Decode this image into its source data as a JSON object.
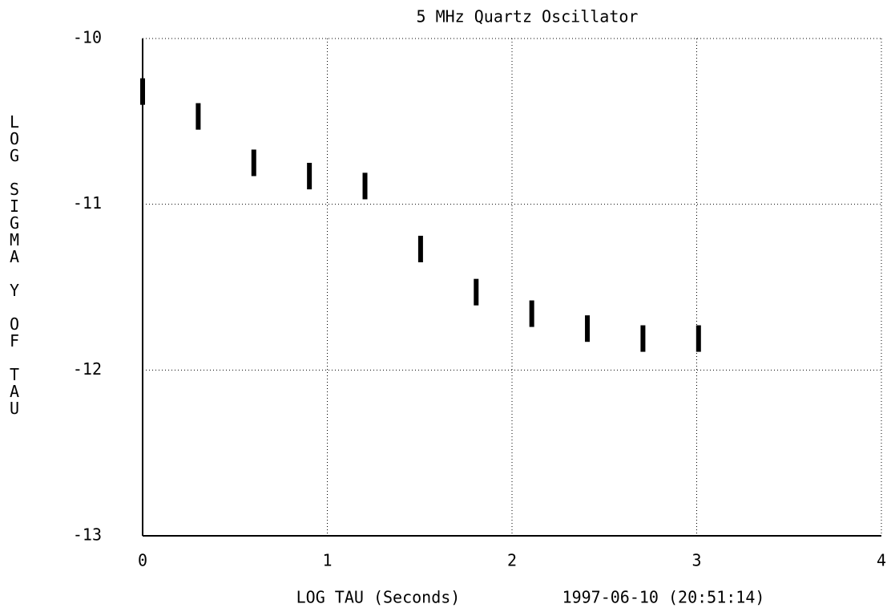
{
  "chart_data": {
    "type": "errorbar",
    "title": "5 MHz Quartz Oscillator",
    "xlabel": "LOG TAU (Seconds)",
    "date": "1997-06-10 (20:51:14)",
    "ylabel": "LOG SIGMA Y OF TAU",
    "x": [
      0,
      0.301,
      0.602,
      0.903,
      1.204,
      1.505,
      1.806,
      2.107,
      2.408,
      2.709,
      3.01
    ],
    "values": [
      -10.32,
      -10.47,
      -10.75,
      -10.83,
      -10.89,
      -11.27,
      -11.53,
      -11.66,
      -11.75,
      -11.81,
      -11.81
    ],
    "errors": [
      0.08,
      0.08,
      0.08,
      0.08,
      0.08,
      0.08,
      0.08,
      0.08,
      0.08,
      0.08,
      0.08
    ],
    "color": "#000000",
    "xlim": [
      0,
      4
    ],
    "ylim": [
      -13,
      -10
    ],
    "xticks": [
      0,
      1,
      2,
      3,
      4
    ],
    "yticks": [
      -10,
      -11,
      -12,
      -13
    ],
    "grid": true
  }
}
